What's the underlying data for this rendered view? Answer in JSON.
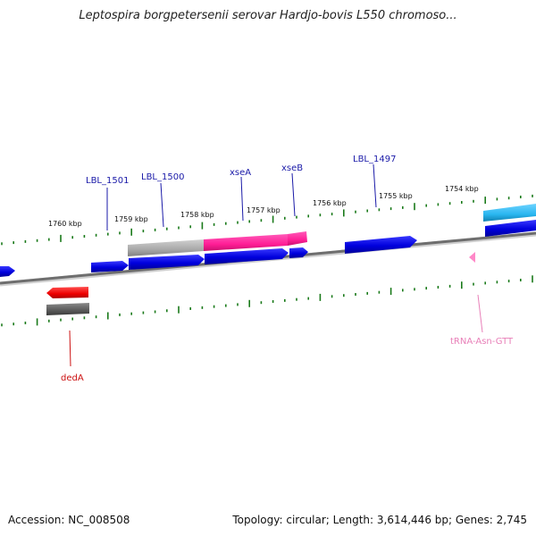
{
  "title": "Leptospira borgpetersenii serovar Hardjo-bovis L550 chromoso...",
  "footer": {
    "accession": "Accession: NC_008508",
    "summary": "Topology: circular; Length: 3,614,446 bp; Genes: 2,745"
  },
  "scale_labels": [
    "1760 kbp",
    "1759 kbp",
    "1758 kbp",
    "1757 kbp",
    "1756 kbp",
    "1755 kbp",
    "1754 kbp"
  ],
  "gene_labels": [
    {
      "text": "LBL_1501",
      "color": "#1a1aa8"
    },
    {
      "text": "LBL_1500",
      "color": "#1a1aa8"
    },
    {
      "text": "xseA",
      "color": "#1a1aa8"
    },
    {
      "text": "xseB",
      "color": "#1a1aa8"
    },
    {
      "text": "LBL_1497",
      "color": "#1a1aa8"
    },
    {
      "text": "dedA",
      "color": "#cc1111"
    },
    {
      "text": "tRNA-Asn-GTT",
      "color": "#e87fb8"
    }
  ],
  "colors": {
    "cds": "#0000e6",
    "rna": "#ff1e96",
    "pseudo": "#b0b0b0",
    "reverse_cds": "#ee0000",
    "trna": "#ff88c8",
    "other": "#29b6f0",
    "backbone": "#7a7a7a",
    "ticks": "#1a7a1a"
  }
}
